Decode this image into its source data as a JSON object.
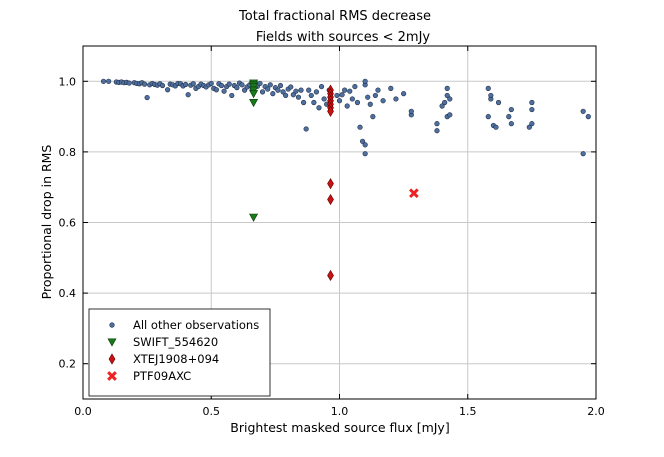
{
  "chart_data": {
    "type": "scatter",
    "title": "Total fractional RMS decrease",
    "subtitle": "Fields with sources < 2mJy",
    "xlabel": "Brightest masked source flux [mJy]",
    "ylabel": "Proportional drop in RMS",
    "xlim": [
      0.0,
      2.0
    ],
    "ylim": [
      0.1,
      1.1
    ],
    "xticks": [
      "0.0",
      "0.5",
      "1.0",
      "1.5",
      "2.0"
    ],
    "yticks": [
      "0.2",
      "0.4",
      "0.6",
      "0.8",
      "1.0"
    ],
    "xtick_values": [
      0.0,
      0.5,
      1.0,
      1.5,
      2.0
    ],
    "ytick_values": [
      0.2,
      0.4,
      0.6,
      0.8,
      1.0
    ],
    "grid": true,
    "legend_position": "lower-left",
    "series": [
      {
        "name": "All other observations",
        "marker": "circle",
        "color": "#4f6f9f",
        "points": [
          [
            0.08,
            1.0
          ],
          [
            0.1,
            1.0
          ],
          [
            0.13,
            0.998
          ],
          [
            0.14,
            0.997
          ],
          [
            0.15,
            0.998
          ],
          [
            0.16,
            0.996
          ],
          [
            0.17,
            0.997
          ],
          [
            0.18,
            0.995
          ],
          [
            0.2,
            0.996
          ],
          [
            0.21,
            0.994
          ],
          [
            0.22,
            0.993
          ],
          [
            0.23,
            0.996
          ],
          [
            0.24,
            0.992
          ],
          [
            0.25,
            0.954
          ],
          [
            0.26,
            0.99
          ],
          [
            0.27,
            0.994
          ],
          [
            0.28,
            0.991
          ],
          [
            0.29,
            0.989
          ],
          [
            0.3,
            0.993
          ],
          [
            0.31,
            0.988
          ],
          [
            0.33,
            0.976
          ],
          [
            0.34,
            0.992
          ],
          [
            0.35,
            0.99
          ],
          [
            0.36,
            0.987
          ],
          [
            0.37,
            0.994
          ],
          [
            0.38,
            0.993
          ],
          [
            0.39,
            0.987
          ],
          [
            0.4,
            0.991
          ],
          [
            0.41,
            0.962
          ],
          [
            0.42,
            0.989
          ],
          [
            0.43,
            0.993
          ],
          [
            0.44,
            0.98
          ],
          [
            0.45,
            0.985
          ],
          [
            0.46,
            0.992
          ],
          [
            0.47,
            0.988
          ],
          [
            0.48,
            0.984
          ],
          [
            0.49,
            0.99
          ],
          [
            0.5,
            0.994
          ],
          [
            0.51,
            0.98
          ],
          [
            0.52,
            0.976
          ],
          [
            0.53,
            0.993
          ],
          [
            0.54,
            0.988
          ],
          [
            0.55,
            0.972
          ],
          [
            0.56,
            0.985
          ],
          [
            0.57,
            0.992
          ],
          [
            0.58,
            0.96
          ],
          [
            0.59,
            0.988
          ],
          [
            0.6,
            0.982
          ],
          [
            0.61,
            0.995
          ],
          [
            0.62,
            0.99
          ],
          [
            0.63,
            0.975
          ],
          [
            0.64,
            0.984
          ],
          [
            0.65,
            0.99
          ],
          [
            0.66,
            0.978
          ],
          [
            0.68,
            0.986
          ],
          [
            0.69,
            0.994
          ],
          [
            0.7,
            0.97
          ],
          [
            0.71,
            0.985
          ],
          [
            0.72,
            0.978
          ],
          [
            0.73,
            0.99
          ],
          [
            0.74,
            0.965
          ],
          [
            0.75,
            0.982
          ],
          [
            0.76,
            0.975
          ],
          [
            0.77,
            0.988
          ],
          [
            0.78,
            0.97
          ],
          [
            0.79,
            0.96
          ],
          [
            0.8,
            0.978
          ],
          [
            0.81,
            0.984
          ],
          [
            0.82,
            0.962
          ],
          [
            0.83,
            0.972
          ],
          [
            0.84,
            0.955
          ],
          [
            0.85,
            0.975
          ],
          [
            0.86,
            0.94
          ],
          [
            0.87,
            0.865
          ],
          [
            0.88,
            0.975
          ],
          [
            0.89,
            0.96
          ],
          [
            0.9,
            0.94
          ],
          [
            0.91,
            0.97
          ],
          [
            0.92,
            0.925
          ],
          [
            0.93,
            0.985
          ],
          [
            0.94,
            0.95
          ],
          [
            0.95,
            0.935
          ],
          [
            0.96,
            0.975
          ],
          [
            0.99,
            0.96
          ],
          [
            1.0,
            0.945
          ],
          [
            1.01,
            0.962
          ],
          [
            1.02,
            0.975
          ],
          [
            1.03,
            0.93
          ],
          [
            1.04,
            0.972
          ],
          [
            1.05,
            0.95
          ],
          [
            1.06,
            0.985
          ],
          [
            1.07,
            0.94
          ],
          [
            1.08,
            0.87
          ],
          [
            1.09,
            0.83
          ],
          [
            1.1,
            0.795
          ],
          [
            1.1,
            0.82
          ],
          [
            1.1,
            0.99
          ],
          [
            1.1,
            1.0
          ],
          [
            1.11,
            0.955
          ],
          [
            1.12,
            0.935
          ],
          [
            1.13,
            0.9
          ],
          [
            1.14,
            0.96
          ],
          [
            1.15,
            0.975
          ],
          [
            1.17,
            0.945
          ],
          [
            1.2,
            0.98
          ],
          [
            1.22,
            0.95
          ],
          [
            1.25,
            0.965
          ],
          [
            1.28,
            0.905
          ],
          [
            1.28,
            0.915
          ],
          [
            1.38,
            0.86
          ],
          [
            1.38,
            0.88
          ],
          [
            1.4,
            0.93
          ],
          [
            1.41,
            0.94
          ],
          [
            1.42,
            0.9
          ],
          [
            1.42,
            0.98
          ],
          [
            1.42,
            0.96
          ],
          [
            1.43,
            0.905
          ],
          [
            1.43,
            0.95
          ],
          [
            1.58,
            0.98
          ],
          [
            1.58,
            0.9
          ],
          [
            1.59,
            0.95
          ],
          [
            1.59,
            0.96
          ],
          [
            1.6,
            0.875
          ],
          [
            1.61,
            0.87
          ],
          [
            1.62,
            0.94
          ],
          [
            1.66,
            0.9
          ],
          [
            1.67,
            0.88
          ],
          [
            1.67,
            0.92
          ],
          [
            1.74,
            0.87
          ],
          [
            1.75,
            0.92
          ],
          [
            1.75,
            0.94
          ],
          [
            1.75,
            0.88
          ],
          [
            1.95,
            0.915
          ],
          [
            1.95,
            0.795
          ],
          [
            1.97,
            0.9
          ]
        ]
      },
      {
        "name": "SWIFT_554620",
        "marker": "triangle-down",
        "color": "#1a7a1a",
        "points": [
          [
            0.665,
            0.995
          ],
          [
            0.665,
            0.99
          ],
          [
            0.665,
            0.985
          ],
          [
            0.665,
            0.975
          ],
          [
            0.665,
            0.965
          ],
          [
            0.665,
            0.94
          ],
          [
            0.665,
            0.615
          ]
        ]
      },
      {
        "name": "XTEJ1908+094",
        "marker": "diamond",
        "color": "#cc1111",
        "points": [
          [
            0.965,
            0.975
          ],
          [
            0.965,
            0.965
          ],
          [
            0.965,
            0.955
          ],
          [
            0.965,
            0.945
          ],
          [
            0.965,
            0.935
          ],
          [
            0.965,
            0.925
          ],
          [
            0.965,
            0.915
          ],
          [
            0.965,
            0.71
          ],
          [
            0.965,
            0.665
          ],
          [
            0.965,
            0.45
          ]
        ]
      },
      {
        "name": "PTF09AXC",
        "marker": "x",
        "color": "#ee2222",
        "points": [
          [
            1.29,
            0.683
          ]
        ]
      }
    ]
  }
}
